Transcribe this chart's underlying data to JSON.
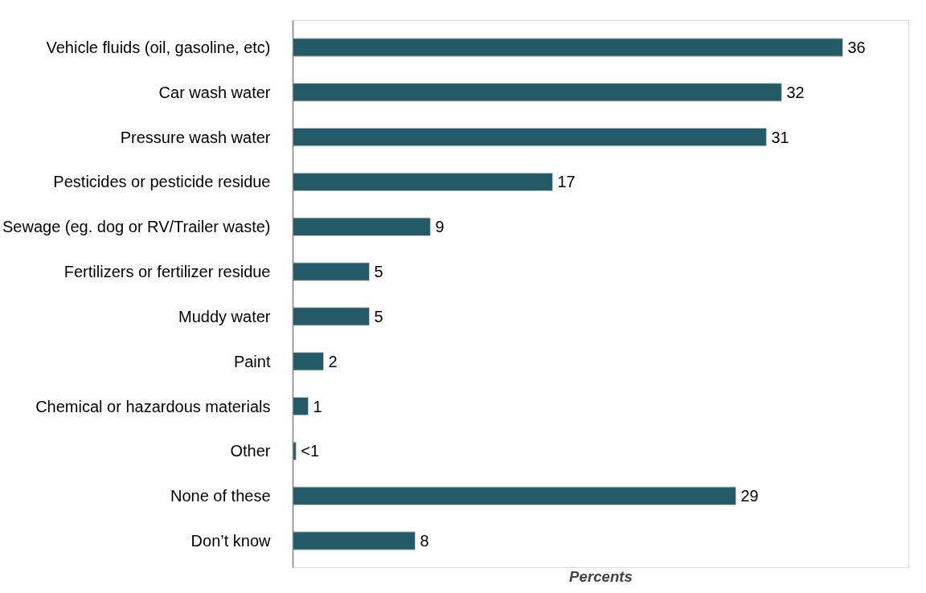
{
  "chart_data": {
    "type": "bar",
    "orientation": "horizontal",
    "xlabel": "Percents",
    "categories": [
      "Vehicle fluids (oil, gasoline, etc)",
      "Car wash water",
      "Pressure wash water",
      "Pesticides or pesticide residue",
      "Sewage (eg. dog or RV/Trailer waste)",
      "Fertilizers or fertilizer residue",
      "Muddy water",
      "Paint",
      "Chemical or hazardous materials",
      "Other",
      "None of these",
      "Don’t know"
    ],
    "values": [
      36,
      32,
      31,
      17,
      9,
      5,
      5,
      2,
      1,
      0.2,
      29,
      8
    ],
    "value_labels": [
      "36",
      "32",
      "31",
      "17",
      "9",
      "5",
      "5",
      "2",
      "1",
      "<1",
      "29",
      "8"
    ],
    "color": "#245a67",
    "grid": false
  }
}
